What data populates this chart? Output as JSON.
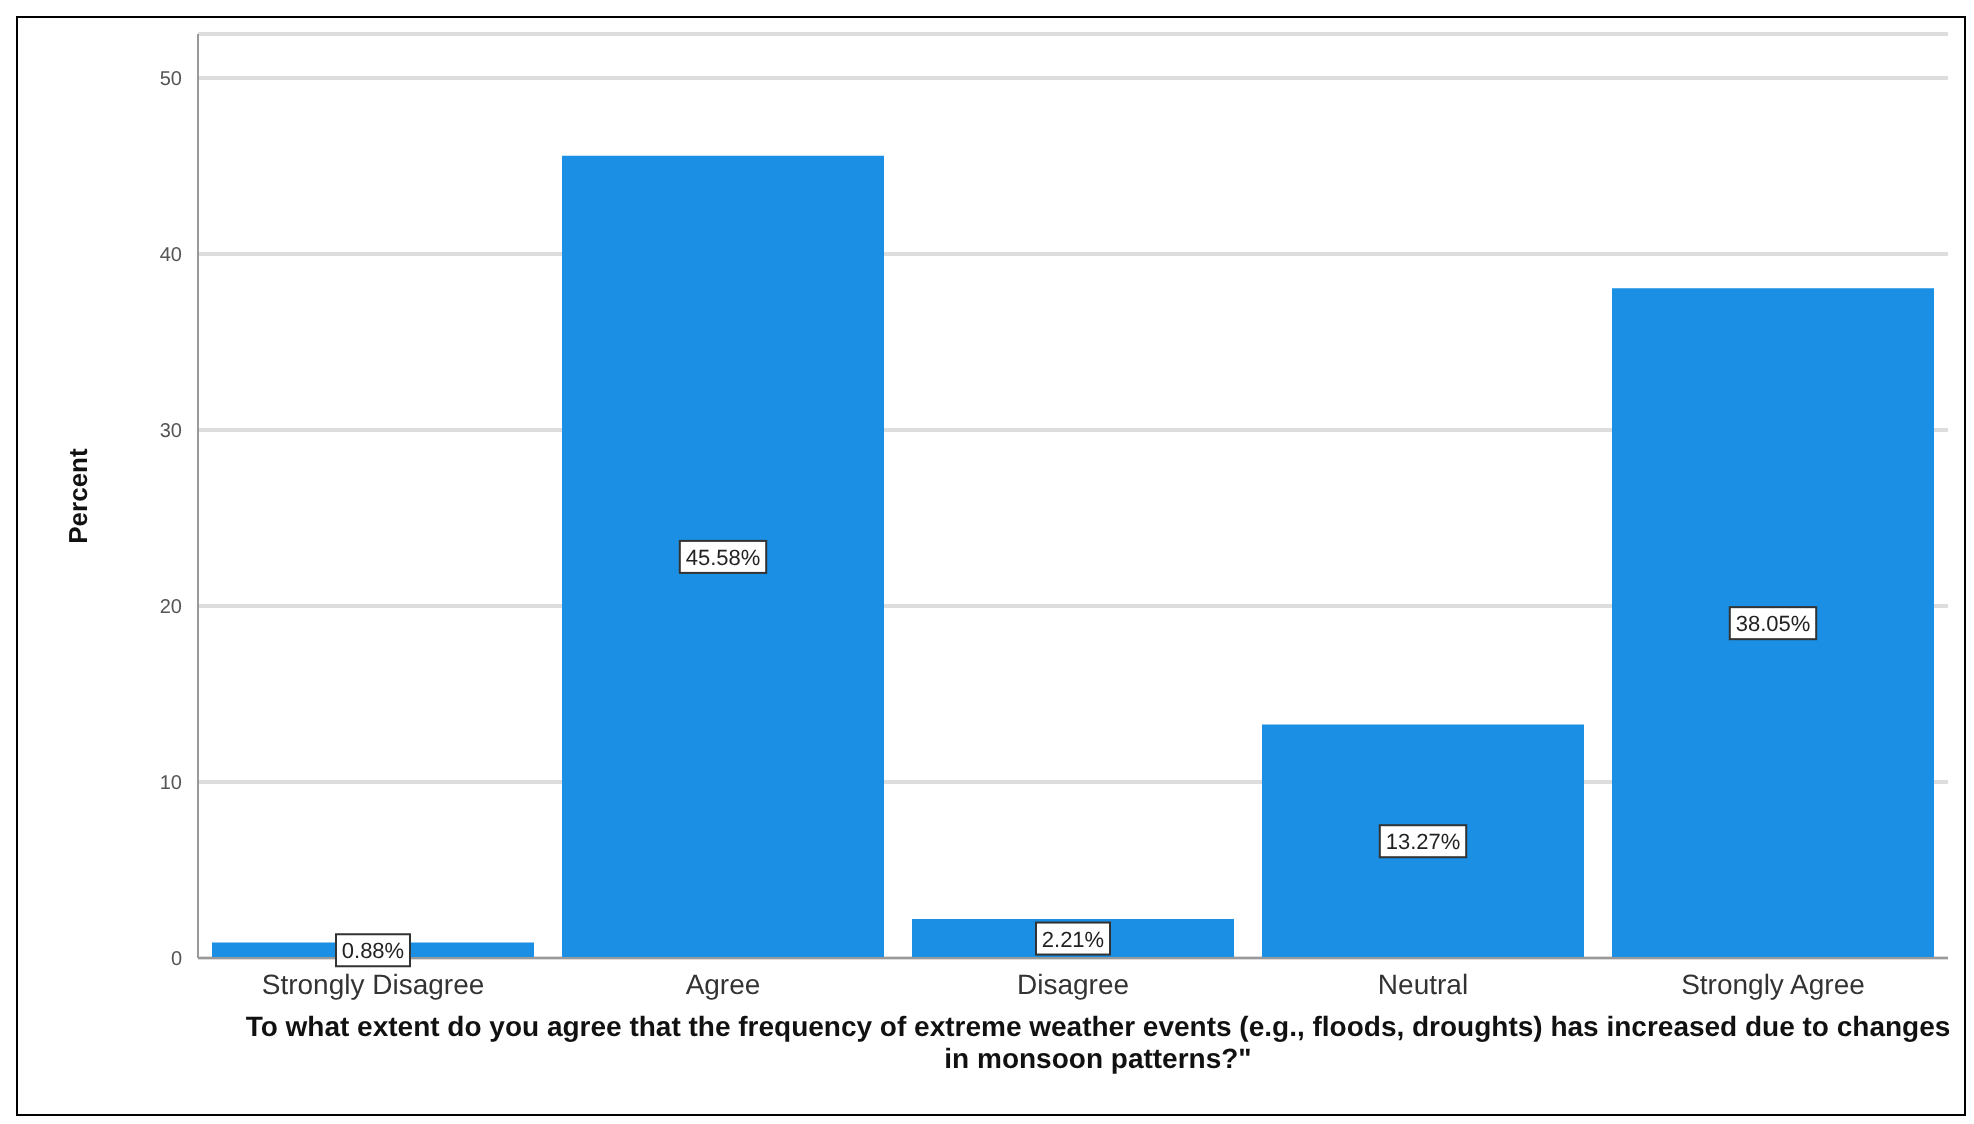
{
  "chart_data": {
    "type": "bar",
    "xlabel": "To what extent do you agree that the frequency of extreme weather events (e.g., floods, droughts) has increased due to changes in monsoon patterns?\"",
    "ylabel": "Percent",
    "categories": [
      "Strongly Disagree",
      "Agree",
      "Disagree",
      "Neutral",
      "Strongly Agree"
    ],
    "values": [
      0.88,
      45.58,
      2.21,
      13.27,
      38.05
    ],
    "value_labels": [
      "0.88%",
      "45.58%",
      "2.21%",
      "13.27%",
      "38.05%"
    ],
    "color": "#1a8fe3",
    "ylim": [
      0,
      52.5
    ],
    "yticks": [
      0,
      10,
      20,
      30,
      40,
      50
    ],
    "grid": "y"
  }
}
